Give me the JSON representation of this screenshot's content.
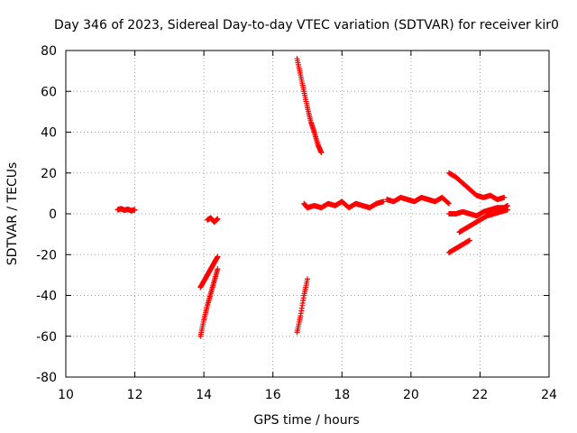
{
  "chart_data": {
    "type": "scatter",
    "title": "Day 346 of 2023, Sidereal Day-to-day VTEC variation (SDTVAR) for receiver kir0",
    "xlabel": "GPS time / hours",
    "ylabel": "SDTVAR / TECUs",
    "xlim": [
      10,
      24
    ],
    "ylim": [
      -80,
      80
    ],
    "xticks": [
      10,
      12,
      14,
      16,
      18,
      20,
      22,
      24
    ],
    "yticks": [
      -80,
      -60,
      -40,
      -20,
      0,
      20,
      40,
      60,
      80
    ],
    "grid": true,
    "marker": "plus",
    "color": "#ff0000",
    "series": [
      {
        "x": [
          11.5,
          11.6,
          11.7,
          11.8,
          11.9,
          12.0
        ],
        "y": [
          2,
          2.5,
          1.8,
          2.2,
          1.5,
          2
        ]
      },
      {
        "x": [
          14.1,
          14.2,
          14.3,
          14.4
        ],
        "y": [
          -3,
          -2,
          -4,
          -2.5
        ]
      },
      {
        "x": [
          13.9,
          14.0,
          14.1,
          14.2,
          14.3,
          14.4
        ],
        "y": [
          -36,
          -33,
          -30,
          -27,
          -24,
          -21
        ]
      },
      {
        "x": [
          13.9,
          14.0,
          14.1,
          14.2,
          14.3,
          14.4
        ],
        "y": [
          -60,
          -52,
          -45,
          -39,
          -33,
          -27
        ]
      },
      {
        "x": [
          16.7,
          16.8,
          16.9,
          17.0,
          17.1,
          17.2,
          17.3,
          17.4
        ],
        "y": [
          76,
          68,
          60,
          52,
          45,
          40,
          34,
          30
        ]
      },
      {
        "x": [
          16.7,
          16.8,
          16.9,
          17.0
        ],
        "y": [
          -58,
          -50,
          -40,
          -32
        ]
      },
      {
        "x": [
          16.9,
          17.0,
          17.2,
          17.4,
          17.6,
          17.8,
          18.0,
          18.2,
          18.4,
          18.6,
          18.8,
          19.0,
          19.2
        ],
        "y": [
          5,
          3,
          4,
          3,
          5,
          4,
          6,
          3,
          5,
          4,
          3,
          5,
          6
        ]
      },
      {
        "x": [
          19.3,
          19.5,
          19.7,
          19.9,
          20.1,
          20.3,
          20.5,
          20.7,
          20.9,
          21.1
        ],
        "y": [
          7,
          6,
          8,
          7,
          6,
          8,
          7,
          6,
          8,
          5
        ]
      },
      {
        "x": [
          21.1,
          21.3,
          21.5,
          21.7,
          21.9,
          22.1,
          22.3,
          22.5,
          22.7
        ],
        "y": [
          20,
          18,
          15,
          12,
          9,
          8,
          9,
          7,
          8
        ]
      },
      {
        "x": [
          21.1,
          21.3,
          21.5,
          21.7,
          21.9,
          22.1,
          22.3,
          22.5,
          22.7,
          22.8
        ],
        "y": [
          0,
          0,
          1,
          0,
          -1,
          1,
          2,
          3,
          3,
          4
        ]
      },
      {
        "x": [
          21.4,
          21.6,
          21.8,
          22.0,
          22.2,
          22.4,
          22.6,
          22.8
        ],
        "y": [
          -9,
          -7,
          -5,
          -3,
          -1,
          0,
          1,
          2
        ]
      },
      {
        "x": [
          21.1,
          21.3,
          21.5,
          21.7
        ],
        "y": [
          -19,
          -17,
          -15,
          -13
        ]
      }
    ]
  }
}
